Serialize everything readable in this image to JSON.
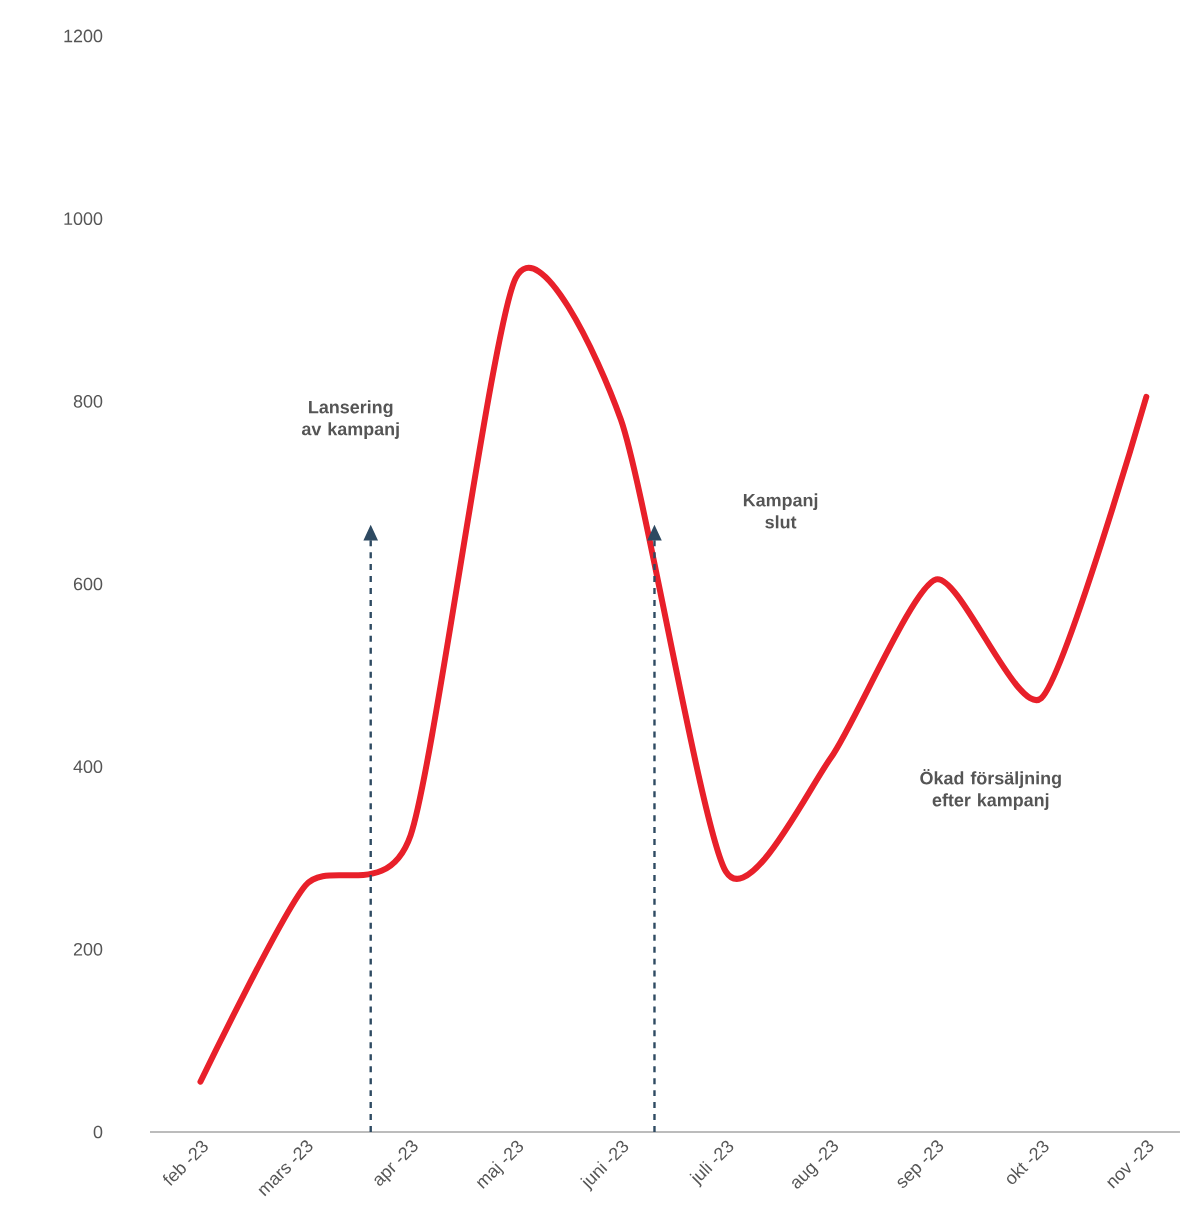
{
  "chart_data": {
    "type": "line",
    "categories": [
      "feb -23",
      "mars -23",
      "apr -23",
      "maj -23",
      "juni -23",
      "juli -23",
      "aug -23",
      "sep -23",
      "okt -23",
      "nov -23"
    ],
    "series": [
      {
        "color": "#e8202a",
        "values": [
          55,
          270,
          325,
          935,
          780,
          285,
          410,
          605,
          475,
          805
        ]
      }
    ],
    "ylim": [
      0,
      1200
    ],
    "yticks": [
      0,
      200,
      400,
      600,
      800,
      1000,
      1200
    ],
    "grid": false,
    "marker": "none",
    "line_style": "solid",
    "annotations": [
      "Lansering av kampanj",
      "Kampanj slut",
      "Ökad försäljning efter kampanj"
    ]
  }
}
